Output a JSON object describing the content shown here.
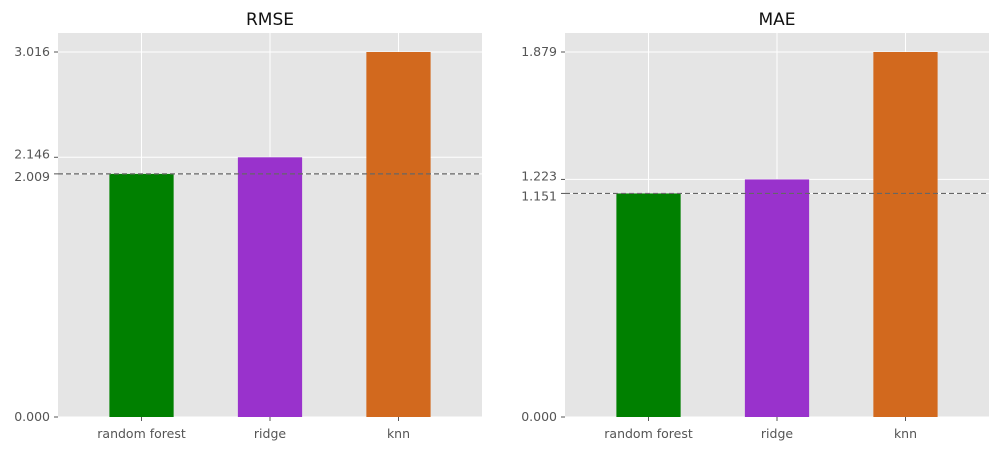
{
  "chart_data": [
    {
      "type": "bar",
      "title": "RMSE",
      "categories": [
        "random forest",
        "ridge",
        "knn"
      ],
      "values": [
        2.009,
        2.146,
        3.016
      ],
      "colors": [
        "#008000",
        "#9932cc",
        "#d2691e"
      ],
      "yticks": [
        0.0,
        2.009,
        2.146,
        3.016
      ],
      "ytick_labels": [
        "0.000",
        "2.009",
        "2.146",
        "3.016"
      ],
      "reference_line": 2.009,
      "ylim": [
        0,
        3.016
      ],
      "grid": true
    },
    {
      "type": "bar",
      "title": "MAE",
      "categories": [
        "random forest",
        "ridge",
        "knn"
      ],
      "values": [
        1.151,
        1.223,
        1.879
      ],
      "colors": [
        "#008000",
        "#9932cc",
        "#d2691e"
      ],
      "yticks": [
        0.0,
        1.151,
        1.223,
        1.879
      ],
      "ytick_labels": [
        "0.000",
        "1.151",
        "1.223",
        "1.879"
      ],
      "reference_line": 1.151,
      "ylim": [
        0,
        1.879
      ],
      "grid": true
    }
  ],
  "style": {
    "panel_background": "#e5e5e5",
    "grid_color": "#ffffff",
    "tick_label_color": "#555555",
    "title_color": "#111111",
    "reference_line_color": "#666666"
  }
}
